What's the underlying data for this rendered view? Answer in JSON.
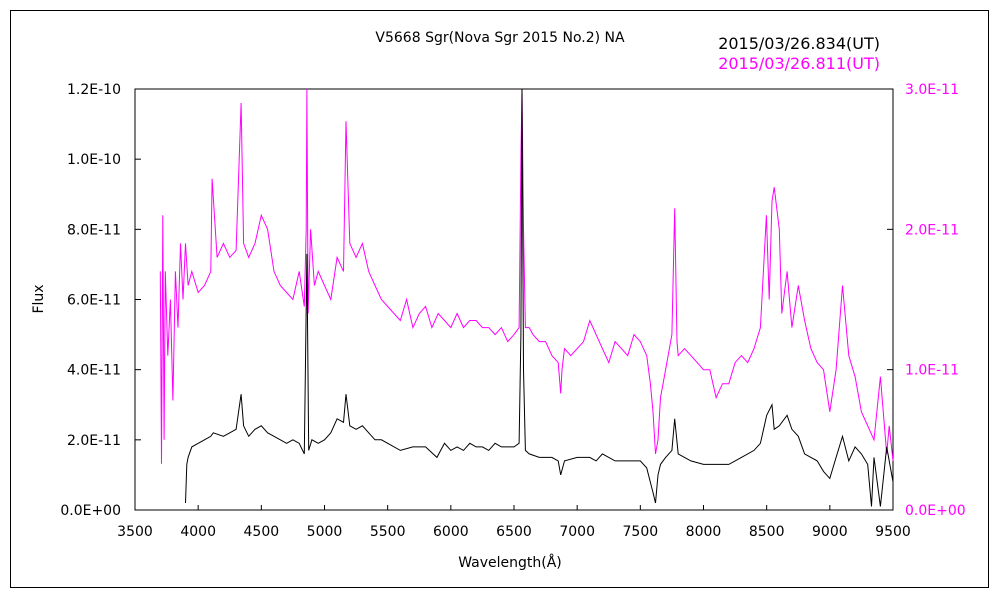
{
  "chart_data": {
    "type": "line",
    "title": "V5668 Sgr(Nova Sgr 2015 No.2)    NA",
    "xlabel": "Wavelength(Å)",
    "ylabel": "Flux",
    "xlim": [
      3500,
      9500
    ],
    "ylim_left": [
      0,
      1.2e-10
    ],
    "ylim_right": [
      0,
      3e-11
    ],
    "x_ticks": [
      "3500",
      "4000",
      "4500",
      "5000",
      "5500",
      "6000",
      "6500",
      "7000",
      "7500",
      "8000",
      "8500",
      "9000",
      "9500"
    ],
    "y_ticks_left": [
      "0.0E+00",
      "2.0E-11",
      "4.0E-11",
      "6.0E-11",
      "8.0E-11",
      "1.0E-10",
      "1.2E-10"
    ],
    "y_ticks_right": [
      "0.0E+00",
      "1.0E-11",
      "2.0E-11",
      "3.0E-11"
    ],
    "grid": false,
    "legend_position": "top-right",
    "colors": {
      "black_series": "#000000",
      "magenta_series": "#ff00ff"
    },
    "series": [
      {
        "name": "2015/03/26.834(UT)",
        "axis": "left",
        "color": "#000000",
        "x": [
          3900,
          3910,
          3920,
          3950,
          4000,
          4050,
          4100,
          4120,
          4200,
          4250,
          4300,
          4340,
          4360,
          4400,
          4450,
          4500,
          4550,
          4600,
          4650,
          4700,
          4750,
          4800,
          4840,
          4861,
          4875,
          4900,
          4950,
          5000,
          5050,
          5100,
          5150,
          5170,
          5200,
          5250,
          5300,
          5350,
          5400,
          5450,
          5500,
          5600,
          5700,
          5800,
          5890,
          5950,
          6000,
          6050,
          6100,
          6150,
          6200,
          6250,
          6300,
          6350,
          6400,
          6450,
          6500,
          6540,
          6555,
          6563,
          6575,
          6590,
          6620,
          6700,
          6800,
          6850,
          6870,
          6900,
          7000,
          7100,
          7150,
          7200,
          7300,
          7400,
          7500,
          7550,
          7600,
          7620,
          7640,
          7660,
          7700,
          7750,
          7772,
          7800,
          7900,
          8000,
          8100,
          8200,
          8300,
          8400,
          8450,
          8500,
          8542,
          8560,
          8600,
          8662,
          8700,
          8750,
          8800,
          8900,
          8950,
          9000,
          9050,
          9100,
          9150,
          9200,
          9250,
          9300,
          9330,
          9350,
          9400,
          9450,
          9500
        ],
        "y": [
          2e-12,
          1.3e-11,
          1.5e-11,
          1.8e-11,
          1.9e-11,
          2e-11,
          2.1e-11,
          2.2e-11,
          2.1e-11,
          2.2e-11,
          2.3e-11,
          3.3e-11,
          2.4e-11,
          2.1e-11,
          2.3e-11,
          2.4e-11,
          2.2e-11,
          2.1e-11,
          2e-11,
          1.9e-11,
          2e-11,
          1.9e-11,
          1.6e-11,
          7.3e-11,
          1.7e-11,
          2e-11,
          1.9e-11,
          2e-11,
          2.2e-11,
          2.6e-11,
          2.5e-11,
          3.3e-11,
          2.4e-11,
          2.3e-11,
          2.4e-11,
          2.2e-11,
          2e-11,
          2e-11,
          1.9e-11,
          1.7e-11,
          1.8e-11,
          1.8e-11,
          1.5e-11,
          1.9e-11,
          1.7e-11,
          1.8e-11,
          1.7e-11,
          1.9e-11,
          1.8e-11,
          1.8e-11,
          1.7e-11,
          1.9e-11,
          1.8e-11,
          1.8e-11,
          1.8e-11,
          1.9e-11,
          5e-11,
          1.2e-10,
          4e-11,
          1.7e-11,
          1.6e-11,
          1.5e-11,
          1.5e-11,
          1.4e-11,
          1e-11,
          1.4e-11,
          1.5e-11,
          1.5e-11,
          1.4e-11,
          1.6e-11,
          1.4e-11,
          1.4e-11,
          1.4e-11,
          1.2e-11,
          5e-12,
          2e-12,
          1e-11,
          1.3e-11,
          1.5e-11,
          1.7e-11,
          2.6e-11,
          1.6e-11,
          1.4e-11,
          1.3e-11,
          1.3e-11,
          1.3e-11,
          1.5e-11,
          1.7e-11,
          1.9e-11,
          2.7e-11,
          3e-11,
          2.3e-11,
          2.4e-11,
          2.7e-11,
          2.3e-11,
          2.1e-11,
          1.6e-11,
          1.4e-11,
          1.1e-11,
          9e-12,
          1.5e-11,
          2.1e-11,
          1.4e-11,
          1.8e-11,
          1.6e-11,
          1.3e-11,
          1e-12,
          1.5e-11,
          1e-12,
          1.8e-11,
          8e-12
        ]
      },
      {
        "name": "2015/03/26.811(UT)",
        "axis": "right",
        "color": "#ff00ff",
        "x": [
          3700,
          3710,
          3720,
          3730,
          3740,
          3760,
          3780,
          3800,
          3820,
          3840,
          3860,
          3880,
          3900,
          3920,
          3950,
          4000,
          4050,
          4100,
          4110,
          4150,
          4200,
          4250,
          4300,
          4340,
          4360,
          4400,
          4450,
          4500,
          4550,
          4600,
          4650,
          4700,
          4750,
          4800,
          4840,
          4855,
          4861,
          4870,
          4890,
          4920,
          4950,
          5000,
          5050,
          5100,
          5150,
          5170,
          5200,
          5250,
          5300,
          5350,
          5400,
          5450,
          5500,
          5550,
          5600,
          5650,
          5700,
          5750,
          5800,
          5850,
          5900,
          5950,
          6000,
          6050,
          6100,
          6150,
          6200,
          6250,
          6300,
          6350,
          6400,
          6450,
          6500,
          6540,
          6555,
          6563,
          6575,
          6590,
          6620,
          6650,
          6700,
          6750,
          6800,
          6850,
          6870,
          6880,
          6900,
          6950,
          7000,
          7050,
          7100,
          7150,
          7200,
          7250,
          7300,
          7350,
          7400,
          7450,
          7500,
          7550,
          7580,
          7600,
          7620,
          7640,
          7660,
          7700,
          7750,
          7772,
          7790,
          7800,
          7850,
          7900,
          7950,
          8000,
          8050,
          8100,
          8150,
          8200,
          8250,
          8300,
          8350,
          8400,
          8450,
          8498,
          8520,
          8542,
          8560,
          8600,
          8620,
          8662,
          8700,
          8750,
          8800,
          8850,
          8900,
          8950,
          9000,
          9050,
          9100,
          9150,
          9200,
          9250,
          9300,
          9350,
          9400,
          9450,
          9470,
          9500
        ],
        "y": [
          1.7e-11,
          3.3e-12,
          2.1e-11,
          5e-12,
          1.7e-11,
          1.1e-11,
          1.5e-11,
          7.8e-12,
          1.7e-11,
          1.3e-11,
          1.9e-11,
          1.5e-11,
          1.9e-11,
          1.6e-11,
          1.7e-11,
          1.55e-11,
          1.6e-11,
          1.7e-11,
          2.36e-11,
          1.8e-11,
          1.9e-11,
          1.8e-11,
          1.85e-11,
          2.9e-11,
          1.9e-11,
          1.8e-11,
          1.9e-11,
          2.1e-11,
          2e-11,
          1.7e-11,
          1.6e-11,
          1.55e-11,
          1.5e-11,
          1.7e-11,
          1.45e-11,
          2e-11,
          3e-11,
          1.4e-11,
          2e-11,
          1.6e-11,
          1.7e-11,
          1.6e-11,
          1.5e-11,
          1.8e-11,
          1.7e-11,
          2.77e-11,
          1.9e-11,
          1.8e-11,
          1.9e-11,
          1.7e-11,
          1.6e-11,
          1.5e-11,
          1.45e-11,
          1.4e-11,
          1.35e-11,
          1.5e-11,
          1.3e-11,
          1.4e-11,
          1.45e-11,
          1.3e-11,
          1.4e-11,
          1.35e-11,
          1.3e-11,
          1.4e-11,
          1.3e-11,
          1.35e-11,
          1.35e-11,
          1.3e-11,
          1.3e-11,
          1.25e-11,
          1.3e-11,
          1.2e-11,
          1.25e-11,
          1.3e-11,
          2.5e-11,
          3e-11,
          2e-11,
          1.3e-11,
          1.3e-11,
          1.25e-11,
          1.2e-11,
          1.2e-11,
          1.1e-11,
          1.05e-11,
          8.3e-12,
          1e-11,
          1.15e-11,
          1.1e-11,
          1.15e-11,
          1.2e-11,
          1.35e-11,
          1.25e-11,
          1.15e-11,
          1.05e-11,
          1.2e-11,
          1.15e-11,
          1.1e-11,
          1.25e-11,
          1.2e-11,
          1.1e-11,
          9e-12,
          7e-12,
          4e-12,
          5e-12,
          8e-12,
          1e-11,
          1.25e-11,
          2.15e-11,
          1.2e-11,
          1.1e-11,
          1.15e-11,
          1.1e-11,
          1.05e-11,
          1e-11,
          1e-11,
          8e-12,
          9e-12,
          9e-12,
          1.05e-11,
          1.1e-11,
          1.05e-11,
          1.15e-11,
          1.3e-11,
          2.1e-11,
          1.5e-11,
          2.2e-11,
          2.3e-11,
          2e-11,
          1.4e-11,
          1.7e-11,
          1.3e-11,
          1.6e-11,
          1.35e-11,
          1.15e-11,
          1.05e-11,
          1e-11,
          7e-12,
          1e-11,
          1.6e-11,
          1.1e-11,
          9.5e-12,
          7e-12,
          6e-12,
          5e-12,
          9.5e-12,
          4e-12,
          6e-12,
          3.5e-12
        ]
      }
    ]
  }
}
